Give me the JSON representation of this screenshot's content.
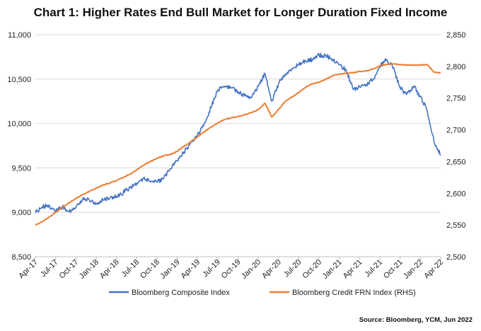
{
  "chart_data": {
    "type": "line",
    "title": "Chart 1: Higher Rates End Bull Market for Longer Duration Fixed Income",
    "source": "Source: Bloomberg, YCM, Jun 2022",
    "x_tick_labels": [
      "Apr-17",
      "Jul-17",
      "Oct-17",
      "Jan-18",
      "Apr-18",
      "Jul-18",
      "Oct-18",
      "Jan-19",
      "Apr-19",
      "Jul-19",
      "Oct-19",
      "Jan-20",
      "Apr-20",
      "Jul-20",
      "Oct-20",
      "Jan-21",
      "Apr-21",
      "Jul-21",
      "Oct-21",
      "Jan-22",
      "Apr-22"
    ],
    "y_left": {
      "min": 8500,
      "max": 11000,
      "step": 500,
      "tick_labels": [
        "8,500",
        "9,000",
        "9,500",
        "10,000",
        "10,500",
        "11,000"
      ]
    },
    "y_right": {
      "min": 2500,
      "max": 2850,
      "step": 50,
      "tick_labels": [
        "2,500",
        "2,550",
        "2,600",
        "2,650",
        "2,700",
        "2,750",
        "2,800",
        "2,850"
      ]
    },
    "grid": true,
    "legend_position": "bottom",
    "series": [
      {
        "name": "Bloomberg Composite Index",
        "axis": "left",
        "color": "#4472C4",
        "values": [
          [
            "Apr-17",
            8990
          ],
          [
            "May-17",
            9060
          ],
          [
            "Jun-17",
            9080
          ],
          [
            "Jul-17",
            9010
          ],
          [
            "Aug-17",
            9060
          ],
          [
            "Sep-17",
            9010
          ],
          [
            "Oct-17",
            9060
          ],
          [
            "Nov-17",
            9150
          ],
          [
            "Dec-17",
            9140
          ],
          [
            "Jan-18",
            9100
          ],
          [
            "Feb-18",
            9140
          ],
          [
            "Mar-18",
            9160
          ],
          [
            "Apr-18",
            9180
          ],
          [
            "May-18",
            9220
          ],
          [
            "Jun-18",
            9280
          ],
          [
            "Jul-18",
            9330
          ],
          [
            "Aug-18",
            9380
          ],
          [
            "Sep-18",
            9350
          ],
          [
            "Oct-18",
            9340
          ],
          [
            "Nov-18",
            9380
          ],
          [
            "Dec-18",
            9490
          ],
          [
            "Jan-19",
            9580
          ],
          [
            "Feb-19",
            9680
          ],
          [
            "Mar-19",
            9780
          ],
          [
            "Apr-19",
            9870
          ],
          [
            "May-19",
            10000
          ],
          [
            "Jun-19",
            10180
          ],
          [
            "Jul-19",
            10380
          ],
          [
            "Aug-19",
            10420
          ],
          [
            "Sep-19",
            10400
          ],
          [
            "Oct-19",
            10360
          ],
          [
            "Nov-19",
            10310
          ],
          [
            "Dec-19",
            10290
          ],
          [
            "Jan-20",
            10420
          ],
          [
            "Feb-20",
            10560
          ],
          [
            "Mar-20",
            10250
          ],
          [
            "Apr-20",
            10450
          ],
          [
            "May-20",
            10560
          ],
          [
            "Jun-20",
            10620
          ],
          [
            "Jul-20",
            10660
          ],
          [
            "Aug-20",
            10700
          ],
          [
            "Sep-20",
            10720
          ],
          [
            "Oct-20",
            10770
          ],
          [
            "Nov-20",
            10760
          ],
          [
            "Dec-20",
            10720
          ],
          [
            "Jan-21",
            10660
          ],
          [
            "Feb-21",
            10600
          ],
          [
            "Mar-21",
            10390
          ],
          [
            "Apr-21",
            10410
          ],
          [
            "May-21",
            10440
          ],
          [
            "Jun-21",
            10500
          ],
          [
            "Jul-21",
            10640
          ],
          [
            "Aug-21",
            10720
          ],
          [
            "Sep-21",
            10630
          ],
          [
            "Oct-21",
            10400
          ],
          [
            "Nov-21",
            10330
          ],
          [
            "Dec-21",
            10420
          ],
          [
            "Jan-22",
            10300
          ],
          [
            "Feb-22",
            10150
          ],
          [
            "Mar-22",
            9800
          ],
          [
            "Apr-22",
            9640
          ]
        ]
      },
      {
        "name": "Bloomberg Credit FRN Index (RHS)",
        "axis": "right",
        "color": "#ED7D31",
        "values": [
          [
            "Apr-17",
            2550
          ],
          [
            "May-17",
            2555
          ],
          [
            "Jun-17",
            2562
          ],
          [
            "Jul-17",
            2570
          ],
          [
            "Aug-17",
            2578
          ],
          [
            "Sep-17",
            2585
          ],
          [
            "Oct-17",
            2592
          ],
          [
            "Nov-17",
            2598
          ],
          [
            "Dec-17",
            2603
          ],
          [
            "Jan-18",
            2608
          ],
          [
            "Feb-18",
            2613
          ],
          [
            "Mar-18",
            2616
          ],
          [
            "Apr-18",
            2620
          ],
          [
            "May-18",
            2625
          ],
          [
            "Jun-18",
            2630
          ],
          [
            "Jul-18",
            2637
          ],
          [
            "Aug-18",
            2644
          ],
          [
            "Sep-18",
            2650
          ],
          [
            "Oct-18",
            2655
          ],
          [
            "Nov-18",
            2659
          ],
          [
            "Dec-18",
            2661
          ],
          [
            "Jan-19",
            2666
          ],
          [
            "Feb-19",
            2674
          ],
          [
            "Mar-19",
            2681
          ],
          [
            "Apr-19",
            2689
          ],
          [
            "May-19",
            2697
          ],
          [
            "Jun-19",
            2704
          ],
          [
            "Jul-19",
            2711
          ],
          [
            "Aug-19",
            2716
          ],
          [
            "Sep-19",
            2719
          ],
          [
            "Oct-19",
            2721
          ],
          [
            "Nov-19",
            2724
          ],
          [
            "Dec-19",
            2727
          ],
          [
            "Jan-20",
            2732
          ],
          [
            "Feb-20",
            2742
          ],
          [
            "Mar-20",
            2720
          ],
          [
            "Apr-20",
            2732
          ],
          [
            "May-20",
            2745
          ],
          [
            "Jun-20",
            2752
          ],
          [
            "Jul-20",
            2759
          ],
          [
            "Aug-20",
            2767
          ],
          [
            "Sep-20",
            2773
          ],
          [
            "Oct-20",
            2775
          ],
          [
            "Nov-20",
            2780
          ],
          [
            "Dec-20",
            2785
          ],
          [
            "Jan-21",
            2788
          ],
          [
            "Feb-21",
            2789
          ],
          [
            "Mar-21",
            2790
          ],
          [
            "Apr-21",
            2792
          ],
          [
            "May-21",
            2793
          ],
          [
            "Jun-21",
            2796
          ],
          [
            "Jul-21",
            2801
          ],
          [
            "Aug-21",
            2803
          ],
          [
            "Sep-21",
            2804
          ],
          [
            "Oct-21",
            2803
          ],
          [
            "Nov-21",
            2802
          ],
          [
            "Dec-21",
            2802
          ],
          [
            "Jan-22",
            2802
          ],
          [
            "Feb-22",
            2803
          ],
          [
            "Mar-22",
            2791
          ],
          [
            "Apr-22",
            2790
          ]
        ]
      }
    ]
  }
}
